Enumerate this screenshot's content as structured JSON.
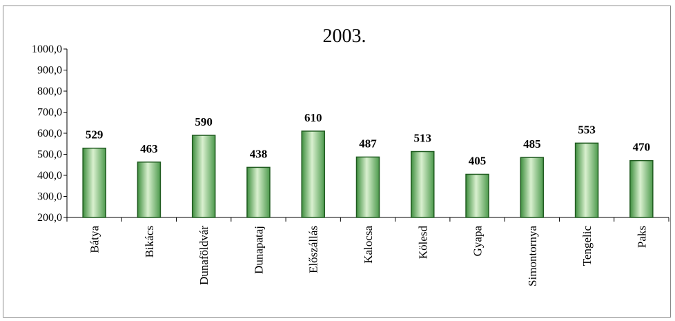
{
  "chart_data": {
    "type": "bar",
    "title": "2003.",
    "xlabel": "",
    "ylabel": "",
    "ylim": [
      200,
      1000
    ],
    "yticks": [
      "200,0",
      "300,0",
      "400,0",
      "500,0",
      "600,0",
      "700,0",
      "800,0",
      "900,0",
      "1000,0"
    ],
    "grid": false,
    "legend": "none",
    "categories": [
      "Bátya",
      "Bikács",
      "Dunaföldvár",
      "Dunapataj",
      "Előszállás",
      "Kalocsa",
      "Kölesd",
      "Gyapa",
      "Simontornya",
      "Tengelic",
      "Paks"
    ],
    "values": [
      529,
      463,
      590,
      438,
      610,
      487,
      513,
      405,
      485,
      553,
      470
    ],
    "data_labels": [
      "529",
      "463",
      "590",
      "438",
      "610",
      "487",
      "513",
      "405",
      "485",
      "553",
      "470"
    ],
    "bar_color": "#5fae5f",
    "bar_edge_color": "#1f5a1f"
  }
}
